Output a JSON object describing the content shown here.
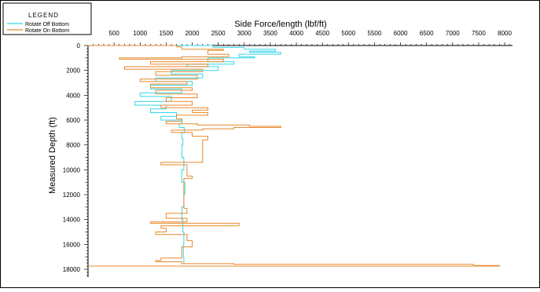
{
  "legend": {
    "title": "LEGEND",
    "items": [
      {
        "label": "Rotate Off Bottom",
        "color": "#33d6e8"
      },
      {
        "label": "Rotate On Bottom",
        "color": "#e8892c"
      }
    ]
  },
  "chart_data": {
    "type": "line",
    "title": "",
    "xlabel": "Side Force/length (lbf/ft)",
    "ylabel": "Measured Depth (ft)",
    "xlim": [
      0,
      8150
    ],
    "ylim": [
      0,
      18000
    ],
    "y_inverted": true,
    "x_axis_position": "top",
    "xticks": [
      500,
      1000,
      1500,
      2000,
      2500,
      3000,
      3500,
      4000,
      4500,
      5000,
      5500,
      6000,
      6500,
      7000,
      7500,
      8000
    ],
    "yticks": [
      0,
      2000,
      4000,
      6000,
      8000,
      10000,
      12000,
      14000,
      16000,
      18000
    ],
    "grid": false,
    "legend_position": "top-left",
    "series": [
      {
        "name": "Rotate Off Bottom",
        "color": "#33d6e8",
        "points": [
          [
            0,
            0
          ],
          [
            2400,
            0
          ],
          [
            3000,
            150
          ],
          [
            3600,
            300
          ],
          [
            3100,
            450
          ],
          [
            3700,
            550
          ],
          [
            2900,
            700
          ],
          [
            3200,
            900
          ],
          [
            2300,
            1000
          ],
          [
            2800,
            1300
          ],
          [
            1900,
            1500
          ],
          [
            2500,
            1700
          ],
          [
            1600,
            2000
          ],
          [
            2200,
            2300
          ],
          [
            1300,
            2600
          ],
          [
            2000,
            2900
          ],
          [
            1200,
            3200
          ],
          [
            1800,
            3500
          ],
          [
            1000,
            3800
          ],
          [
            1600,
            4100
          ],
          [
            900,
            4500
          ],
          [
            1500,
            4800
          ],
          [
            1200,
            5100
          ],
          [
            1700,
            5400
          ],
          [
            1400,
            5700
          ],
          [
            1800,
            6000
          ],
          [
            1750,
            6300
          ],
          [
            1850,
            6600
          ],
          [
            1800,
            7000
          ],
          [
            1820,
            7500
          ],
          [
            1800,
            8000
          ],
          [
            1840,
            9000
          ],
          [
            1800,
            10000
          ],
          [
            1860,
            11000
          ],
          [
            1840,
            12000
          ],
          [
            1800,
            13000
          ],
          [
            1820,
            14000
          ],
          [
            1840,
            15000
          ],
          [
            1830,
            16000
          ],
          [
            1840,
            17000
          ],
          [
            1840,
            17500
          ]
        ]
      },
      {
        "name": "Rotate On Bottom",
        "color": "#e8892c",
        "points": [
          [
            0,
            0
          ],
          [
            1700,
            0
          ],
          [
            1800,
            100
          ],
          [
            2600,
            300
          ],
          [
            2300,
            400
          ],
          [
            2700,
            700
          ],
          [
            1800,
            900
          ],
          [
            600,
            1000
          ],
          [
            2600,
            1100
          ],
          [
            1200,
            1300
          ],
          [
            2300,
            1500
          ],
          [
            700,
            1700
          ],
          [
            2200,
            1900
          ],
          [
            1300,
            2100
          ],
          [
            2100,
            2400
          ],
          [
            1000,
            2700
          ],
          [
            1900,
            2900
          ],
          [
            1200,
            3100
          ],
          [
            2000,
            3400
          ],
          [
            1300,
            3600
          ],
          [
            2100,
            3900
          ],
          [
            1500,
            4200
          ],
          [
            2000,
            4500
          ],
          [
            1400,
            4800
          ],
          [
            2300,
            5000
          ],
          [
            2000,
            5200
          ],
          [
            2300,
            5400
          ],
          [
            1700,
            5600
          ],
          [
            1800,
            5900
          ],
          [
            1500,
            6100
          ],
          [
            2100,
            6300
          ],
          [
            3100,
            6400
          ],
          [
            3700,
            6500
          ],
          [
            2800,
            6600
          ],
          [
            2200,
            6700
          ],
          [
            1600,
            6800
          ],
          [
            2000,
            7000
          ],
          [
            2300,
            7300
          ],
          [
            2200,
            7600
          ],
          [
            2200,
            9300
          ],
          [
            1400,
            9400
          ],
          [
            1900,
            9600
          ],
          [
            1900,
            10200
          ],
          [
            2000,
            10500
          ],
          [
            1840,
            10700
          ],
          [
            1840,
            13000
          ],
          [
            1900,
            13100
          ],
          [
            1500,
            13500
          ],
          [
            1900,
            13900
          ],
          [
            1200,
            14200
          ],
          [
            2900,
            14300
          ],
          [
            1400,
            14500
          ],
          [
            1500,
            14700
          ],
          [
            1300,
            15000
          ],
          [
            1900,
            15200
          ],
          [
            2000,
            15700
          ],
          [
            1800,
            16200
          ],
          [
            1800,
            16700
          ],
          [
            1400,
            17100
          ],
          [
            1300,
            17300
          ],
          [
            1800,
            17400
          ],
          [
            2800,
            17550
          ],
          [
            7400,
            17600
          ],
          [
            7900,
            17700
          ],
          [
            0,
            17750
          ]
        ]
      }
    ]
  }
}
